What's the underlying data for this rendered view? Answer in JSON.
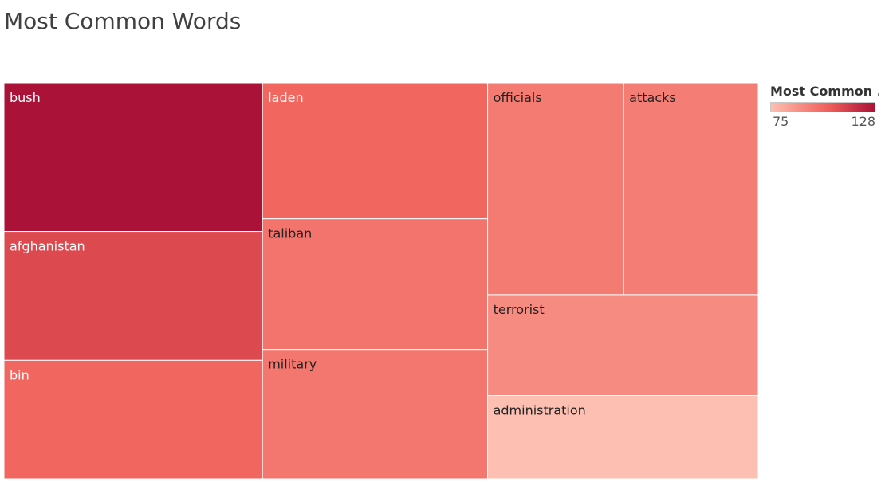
{
  "title": "Most Common Words",
  "legend": {
    "title": "Most Common ..",
    "min_label": "75",
    "max_label": "128",
    "color_low": "#fdbfb1",
    "color_mid": "#f0605a",
    "color_high": "#ab1237"
  },
  "chart_data": {
    "type": "treemap",
    "title": "Most Common Words",
    "color_legend_title": "Most Common ..",
    "color_range": [
      75,
      128
    ],
    "items": [
      {
        "label": "bush",
        "value": 128
      },
      {
        "label": "afghanistan",
        "value": 111
      },
      {
        "label": "bin",
        "value": 102
      },
      {
        "label": "laden",
        "value": 102
      },
      {
        "label": "taliban",
        "value": 98
      },
      {
        "label": "military",
        "value": 97
      },
      {
        "label": "officials",
        "value": 96
      },
      {
        "label": "attacks",
        "value": 95
      },
      {
        "label": "terrorist",
        "value": 91
      },
      {
        "label": "administration",
        "value": 75
      }
    ]
  }
}
